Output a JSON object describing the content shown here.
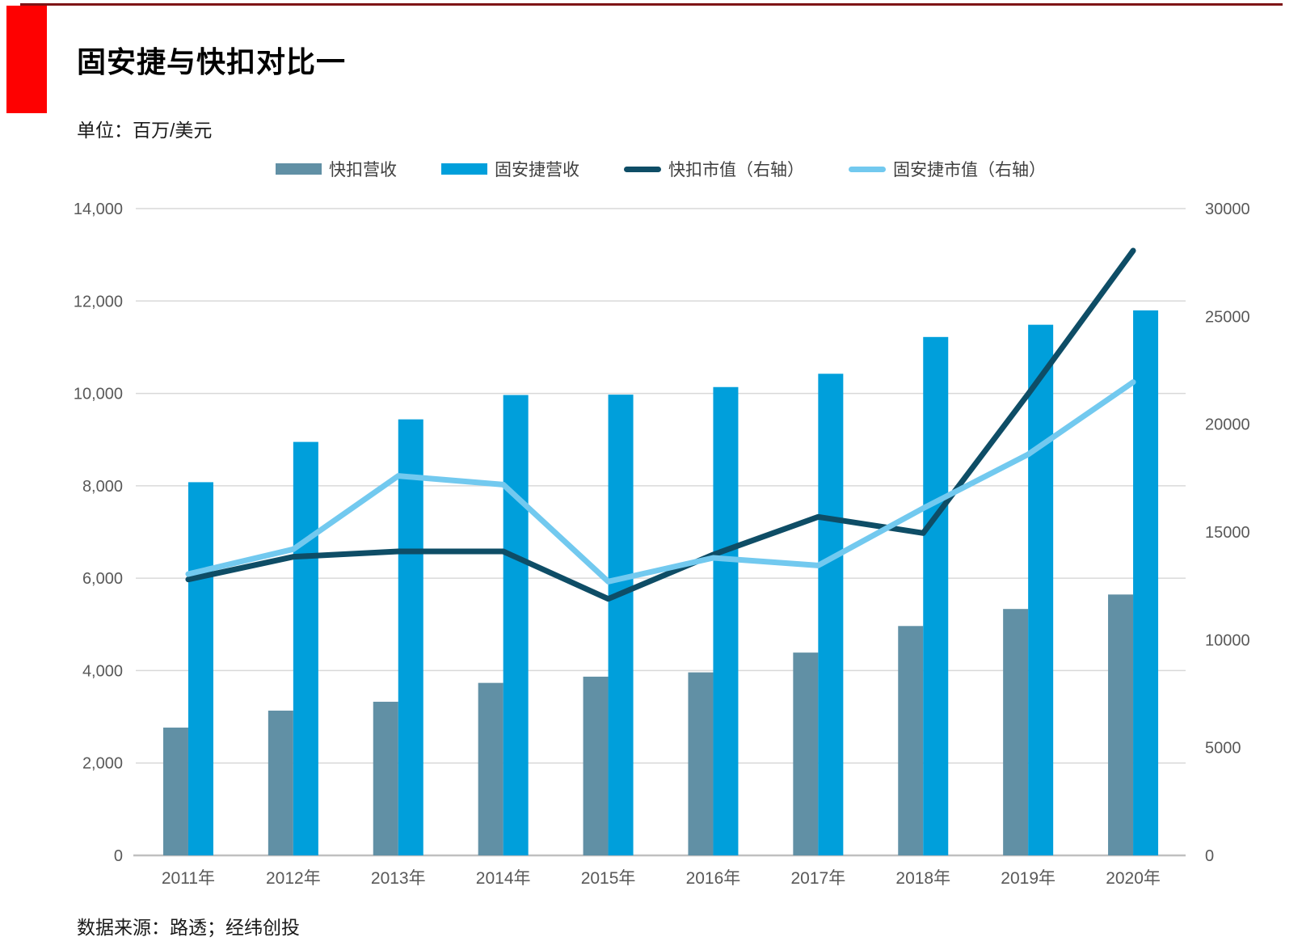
{
  "page": {
    "title": "固安捷与快扣对比一",
    "unit_label": "单位：百万/美元",
    "source_note": "数据来源：路透；经纬创投"
  },
  "colors": {
    "top_rule": "#7e1416",
    "accent_red_block": "#fe0101",
    "grid_line": "#d9d9d9",
    "axis_line": "#c0c0c0",
    "axis_text": "#595959",
    "fastenal_revenue": "#6190a5",
    "grainger_revenue": "#009fdb",
    "fastenal_mktcap": "#0e4d66",
    "grainger_mktcap": "#72c9ef"
  },
  "chart_data": {
    "type": "combo-bar-line",
    "categories": [
      "2011年",
      "2012年",
      "2013年",
      "2014年",
      "2015年",
      "2016年",
      "2017年",
      "2018年",
      "2019年",
      "2020年"
    ],
    "series": [
      {
        "name": "快扣营收",
        "kind": "bar",
        "axis": "left",
        "color_key": "fastenal_revenue",
        "values": [
          2767,
          3134,
          3326,
          3734,
          3869,
          3962,
          4390,
          4965,
          5334,
          5647
        ]
      },
      {
        "name": "固安捷营收",
        "kind": "bar",
        "axis": "left",
        "color_key": "grainger_revenue",
        "values": [
          8078,
          8950,
          9438,
          9965,
          9973,
          10137,
          10425,
          11221,
          11486,
          11797
        ]
      },
      {
        "name": "快扣市值（右轴）",
        "kind": "line",
        "axis": "right",
        "color_key": "fastenal_mktcap",
        "values": [
          12800,
          13850,
          14100,
          14100,
          11900,
          13950,
          15700,
          14950,
          21400,
          28050
        ]
      },
      {
        "name": "固安捷市值（右轴）",
        "kind": "line",
        "axis": "right",
        "color_key": "grainger_mktcap",
        "values": [
          13050,
          14200,
          17600,
          17200,
          12700,
          13800,
          13450,
          16100,
          18600,
          21950
        ]
      }
    ],
    "left_axis": {
      "min": 0,
      "max": 14000,
      "step": 2000,
      "tick_labels": [
        "0",
        "2,000",
        "4,000",
        "6,000",
        "8,000",
        "10,000",
        "12,000",
        "14,000"
      ]
    },
    "right_axis": {
      "min": 0,
      "max": 30000,
      "step": 5000,
      "tick_labels": [
        "0",
        "5000",
        "10000",
        "15000",
        "20000",
        "25000",
        "30000"
      ]
    },
    "legend_position": "top-center",
    "grid": "horizontal gridlines at left-axis ticks only"
  }
}
